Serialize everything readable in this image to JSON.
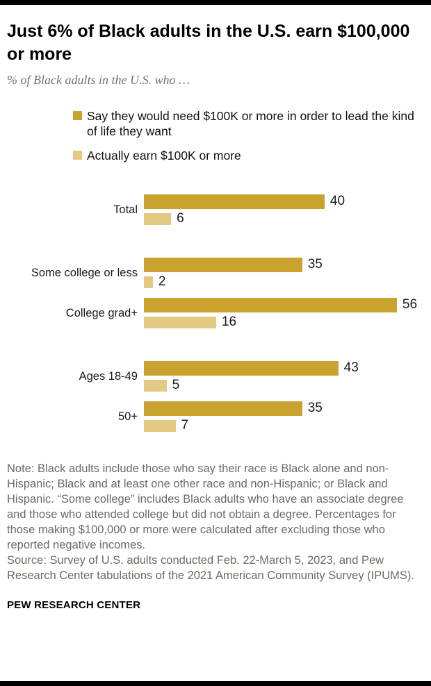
{
  "header": {
    "title": "Just 6% of Black adults in the U.S. earn $100,000 or more",
    "subtitle": "% of Black adults in the U.S. who …"
  },
  "legend": [
    {
      "label": "Say they would need $100K or more in order to lead the kind of life they want",
      "color": "#C9A22F"
    },
    {
      "label": "Actually earn $100K or more",
      "color": "#E3CA83"
    }
  ],
  "chart_data": {
    "type": "bar",
    "orientation": "horizontal",
    "title": "Just 6% of Black adults in the U.S. earn $100,000 or more",
    "xlabel": "",
    "ylabel": "",
    "xlim": [
      0,
      62
    ],
    "grid": false,
    "legend_position": "top",
    "categories": [
      "Total",
      "Some college or less",
      "College grad+",
      "Ages 18-49",
      "50+"
    ],
    "series": [
      {
        "name": "Say they would need $100K or more in order to lead the kind of life they want",
        "color": "#C9A22F",
        "values": [
          40,
          35,
          56,
          43,
          35
        ]
      },
      {
        "name": "Actually earn $100K or more",
        "color": "#E3CA83",
        "values": [
          6,
          2,
          16,
          5,
          7
        ]
      }
    ],
    "rows": [
      {
        "label": "Total",
        "need": 40,
        "earn": 6,
        "group_start": false
      },
      {
        "label": "Some college or less",
        "need": 35,
        "earn": 2,
        "group_start": true
      },
      {
        "label": "College grad+",
        "need": 56,
        "earn": 16,
        "group_start": false
      },
      {
        "label": "Ages 18-49",
        "need": 43,
        "earn": 5,
        "group_start": true
      },
      {
        "label": "50+",
        "need": 35,
        "earn": 7,
        "group_start": false
      }
    ]
  },
  "notes": {
    "note": "Note: Black adults include those who say their race is Black alone and non-Hispanic; Black and at least one other race and non-Hispanic; or Black and Hispanic. “Some college” includes Black adults who have an associate degree and those who attended college but did not obtain a degree. Percentages for those making $100,000 or more were calculated after excluding those who reported negative incomes.",
    "source": "Source: Survey of U.S. adults conducted Feb. 22-March 5, 2023, and Pew Research Center tabulations of the 2021 American Community Survey (IPUMS)."
  },
  "footer": {
    "brand": "PEW RESEARCH CENTER"
  }
}
